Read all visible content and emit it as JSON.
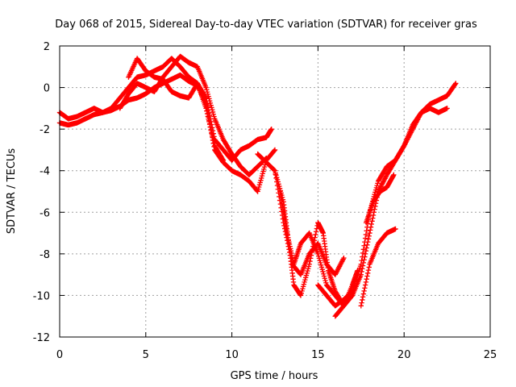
{
  "chart_data": {
    "type": "scatter",
    "title": "Day 068 of 2015, Sidereal Day-to-day VTEC variation (SDTVAR) for receiver gras",
    "xlabel": "GPS time / hours",
    "ylabel": "SDTVAR / TECUs",
    "xlim": [
      0,
      25
    ],
    "ylim": [
      -12,
      2
    ],
    "xticks": [
      0,
      5,
      10,
      15,
      20,
      25
    ],
    "yticks": [
      -12,
      -10,
      -8,
      -6,
      -4,
      -2,
      0,
      2
    ],
    "grid": true,
    "marker": "+",
    "color": "#ff0000",
    "series": [
      {
        "x": [
          0.0,
          0.5,
          1.0,
          1.5,
          2.0,
          2.5,
          3.0,
          3.5,
          4.0,
          4.5,
          5.0,
          5.5,
          6.0,
          6.5,
          7.0,
          7.5,
          8.0,
          8.5,
          9.0,
          9.5,
          10.0,
          10.5,
          11.0,
          11.5,
          12.0,
          12.3
        ],
        "y": [
          -1.2,
          -1.5,
          -1.4,
          -1.2,
          -1.0,
          -1.2,
          -1.0,
          -0.5,
          0.0,
          0.5,
          0.6,
          0.8,
          1.0,
          1.4,
          1.0,
          0.5,
          0.2,
          -0.5,
          -2.5,
          -3.0,
          -3.5,
          -3.0,
          -2.8,
          -2.5,
          -2.4,
          -2.0
        ]
      },
      {
        "x": [
          0.0,
          0.5,
          1.0,
          1.5,
          2.0,
          2.5,
          3.0,
          3.5,
          4.0,
          4.5,
          5.0,
          5.5,
          6.0,
          6.5,
          7.0,
          7.5,
          8.0,
          8.5,
          9.0,
          9.5,
          10.0,
          10.5,
          11.0,
          11.5,
          12.0,
          12.5
        ],
        "y": [
          -1.7,
          -1.8,
          -1.7,
          -1.5,
          -1.3,
          -1.2,
          -1.1,
          -0.9,
          -0.6,
          -0.5,
          -0.3,
          0.0,
          0.2,
          0.4,
          0.6,
          0.3,
          0.1,
          -0.8,
          -3.0,
          -3.6,
          -4.0,
          -4.2,
          -4.5,
          -5.0,
          -3.5,
          -3.0
        ]
      },
      {
        "x": [
          3.5,
          4.0,
          4.5,
          5.0,
          5.5,
          6.0,
          6.5,
          7.0,
          7.5,
          8.0,
          8.5,
          9.0,
          9.5,
          10.0,
          10.5,
          11.0,
          11.5,
          12.0
        ],
        "y": [
          -1.0,
          -0.3,
          0.2,
          0.0,
          -0.2,
          0.5,
          1.0,
          1.5,
          1.2,
          1.0,
          0.0,
          -1.5,
          -2.5,
          -3.2,
          -3.8,
          -4.2,
          -3.8,
          -3.4
        ]
      },
      {
        "x": [
          4.0,
          4.5,
          5.0,
          5.5,
          6.0,
          6.5,
          7.0,
          7.5,
          8.0,
          8.5,
          9.0,
          9.5
        ],
        "y": [
          0.5,
          1.4,
          0.8,
          0.5,
          0.4,
          -0.2,
          -0.4,
          -0.5,
          0.2,
          -1.0,
          -2.8,
          -3.5
        ]
      },
      {
        "x": [
          11.5,
          12.0,
          12.5,
          13.0,
          13.5,
          14.0,
          14.5,
          15.0,
          15.5,
          16.0,
          16.5
        ],
        "y": [
          -3.2,
          -3.6,
          -4.0,
          -6.5,
          -8.5,
          -9.0,
          -8.0,
          -7.5,
          -8.5,
          -9.0,
          -8.2
        ]
      },
      {
        "x": [
          12.5,
          13.0,
          13.3,
          13.6,
          14.0,
          14.5,
          15.0,
          15.3,
          15.6,
          16.0,
          16.5
        ],
        "y": [
          -4.0,
          -5.5,
          -7.5,
          -9.5,
          -10.0,
          -8.5,
          -6.5,
          -7.0,
          -8.8,
          -9.8,
          -10.5
        ]
      },
      {
        "x": [
          12.8,
          13.2,
          13.6,
          14.0,
          14.5,
          15.0,
          15.5,
          16.0,
          16.5,
          17.0,
          17.3
        ],
        "y": [
          -5.0,
          -7.0,
          -8.5,
          -7.5,
          -7.0,
          -8.0,
          -9.5,
          -10.0,
          -10.5,
          -9.5,
          -8.8
        ]
      },
      {
        "x": [
          15.0,
          15.5,
          16.0,
          16.5,
          17.0,
          17.5,
          18.0,
          18.5,
          19.0,
          19.5,
          20.0,
          20.5,
          21.0,
          21.5,
          22.0,
          22.5,
          23.0
        ],
        "y": [
          -9.5,
          -10.0,
          -10.5,
          -10.2,
          -9.8,
          -8.5,
          -6.0,
          -4.5,
          -3.8,
          -3.5,
          -2.8,
          -2.0,
          -1.2,
          -0.8,
          -0.6,
          -0.4,
          0.2
        ]
      },
      {
        "x": [
          16.0,
          16.5,
          17.0,
          17.5,
          18.0,
          18.5,
          19.0,
          19.5,
          20.0,
          20.5,
          21.0,
          21.5,
          22.0,
          22.5
        ],
        "y": [
          -11.0,
          -10.5,
          -10.0,
          -9.0,
          -7.0,
          -5.0,
          -4.2,
          -3.5,
          -2.8,
          -1.8,
          -1.2,
          -1.0,
          -1.2,
          -1.0
        ]
      },
      {
        "x": [
          17.5,
          18.0,
          18.5,
          19.0,
          19.5
        ],
        "y": [
          -10.5,
          -8.5,
          -7.5,
          -7.0,
          -6.8
        ]
      },
      {
        "x": [
          17.8,
          18.2,
          18.6,
          19.0,
          19.4
        ],
        "y": [
          -6.5,
          -5.5,
          -5.0,
          -4.8,
          -4.2
        ]
      }
    ]
  }
}
